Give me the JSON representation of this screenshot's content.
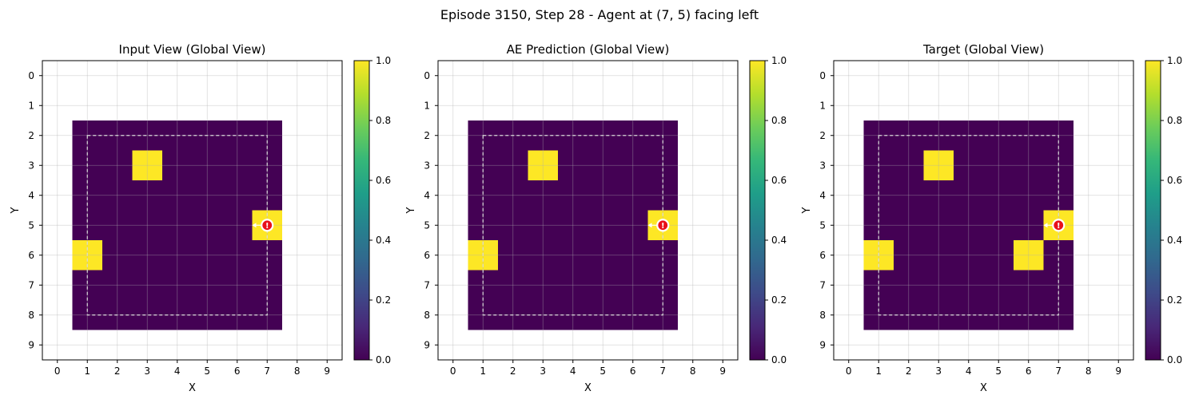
{
  "figure": {
    "suptitle": "Episode 3150, Step 28 - Agent at (7, 5) facing left"
  },
  "chart_data": [
    {
      "type": "heatmap",
      "title": "Input View (Global View)",
      "xlabel": "X",
      "ylabel": "Y",
      "x_ticks": [
        0,
        1,
        2,
        3,
        4,
        5,
        6,
        7,
        8,
        9
      ],
      "y_ticks": [
        0,
        1,
        2,
        3,
        4,
        5,
        6,
        7,
        8,
        9
      ],
      "grid": true,
      "colormap": "viridis",
      "colorbar_range": [
        0.0,
        1.0
      ],
      "colorbar_ticks": [
        "0.0",
        "0.2",
        "0.4",
        "0.6",
        "0.8",
        "1.0"
      ],
      "dark_region": {
        "x": [
          1,
          7
        ],
        "y": [
          2,
          8
        ],
        "value": 0.0
      },
      "bright_cells": [
        {
          "x": 3,
          "y": 3,
          "value": 1.0
        },
        {
          "x": 7,
          "y": 5,
          "value": 1.0
        },
        {
          "x": 1,
          "y": 6,
          "value": 1.0
        }
      ],
      "dashed_box": {
        "x": [
          1,
          7
        ],
        "y": [
          2,
          8
        ]
      },
      "agent": {
        "x": 7,
        "y": 5,
        "facing": "left",
        "marker": "!"
      }
    },
    {
      "type": "heatmap",
      "title": "AE Prediction (Global View)",
      "xlabel": "X",
      "ylabel": "Y",
      "x_ticks": [
        0,
        1,
        2,
        3,
        4,
        5,
        6,
        7,
        8,
        9
      ],
      "y_ticks": [
        0,
        1,
        2,
        3,
        4,
        5,
        6,
        7,
        8,
        9
      ],
      "grid": true,
      "colormap": "viridis",
      "colorbar_range": [
        0.0,
        1.0
      ],
      "colorbar_ticks": [
        "0.0",
        "0.2",
        "0.4",
        "0.6",
        "0.8",
        "1.0"
      ],
      "dark_region": {
        "x": [
          1,
          7
        ],
        "y": [
          2,
          8
        ],
        "value": 0.0
      },
      "bright_cells": [
        {
          "x": 3,
          "y": 3,
          "value": 1.0
        },
        {
          "x": 7,
          "y": 5,
          "value": 1.0
        },
        {
          "x": 1,
          "y": 6,
          "value": 1.0
        }
      ],
      "dashed_box": {
        "x": [
          1,
          7
        ],
        "y": [
          2,
          8
        ]
      },
      "agent": {
        "x": 7,
        "y": 5,
        "facing": "left",
        "marker": "!"
      }
    },
    {
      "type": "heatmap",
      "title": "Target (Global View)",
      "xlabel": "X",
      "ylabel": "Y",
      "x_ticks": [
        0,
        1,
        2,
        3,
        4,
        5,
        6,
        7,
        8,
        9
      ],
      "y_ticks": [
        0,
        1,
        2,
        3,
        4,
        5,
        6,
        7,
        8,
        9
      ],
      "grid": true,
      "colormap": "viridis",
      "colorbar_range": [
        0.0,
        1.0
      ],
      "colorbar_ticks": [
        "0.0",
        "0.2",
        "0.4",
        "0.6",
        "0.8",
        "1.0"
      ],
      "dark_region": {
        "x": [
          1,
          7
        ],
        "y": [
          2,
          8
        ],
        "value": 0.0
      },
      "bright_cells": [
        {
          "x": 3,
          "y": 3,
          "value": 1.0
        },
        {
          "x": 7,
          "y": 5,
          "value": 1.0
        },
        {
          "x": 1,
          "y": 6,
          "value": 1.0
        },
        {
          "x": 6,
          "y": 6,
          "value": 1.0
        }
      ],
      "dashed_box": {
        "x": [
          1,
          7
        ],
        "y": [
          2,
          8
        ]
      },
      "agent": {
        "x": 7,
        "y": 5,
        "facing": "left",
        "marker": "!"
      }
    }
  ]
}
